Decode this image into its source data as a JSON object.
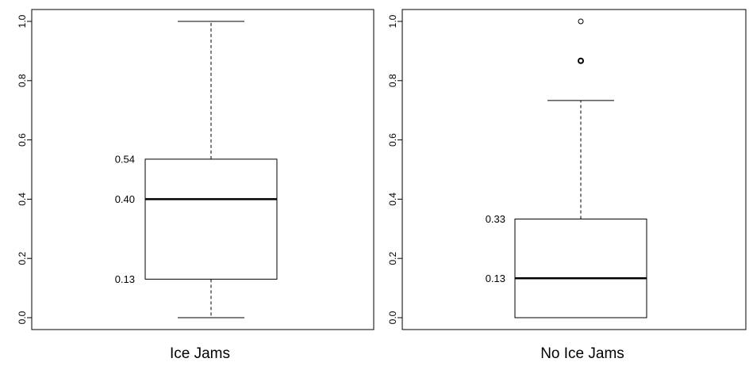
{
  "chart_data": [
    {
      "type": "box",
      "category": "Ice Jams",
      "ylim": [
        0,
        1
      ],
      "yticks": [
        "0.0",
        "0.2",
        "0.4",
        "0.6",
        "0.8",
        "1.0"
      ],
      "whisker_low": 0.0,
      "q1": 0.13,
      "median": 0.4,
      "q3": 0.535,
      "whisker_high": 1.0,
      "outliers": [],
      "labels": {
        "q3": "0.54",
        "median": "0.40",
        "q1": "0.13"
      }
    },
    {
      "type": "box",
      "category": "No Ice Jams",
      "ylim": [
        0,
        1
      ],
      "yticks": [
        "0.0",
        "0.2",
        "0.4",
        "0.6",
        "0.8",
        "1.0"
      ],
      "whisker_low": 0.0,
      "q1": 0.0,
      "median": 0.133,
      "q3": 0.333,
      "whisker_high": 0.733,
      "outliers": [
        0.867,
        1.0
      ],
      "labels": {
        "q3": "0.33",
        "median": "0.13"
      }
    }
  ]
}
